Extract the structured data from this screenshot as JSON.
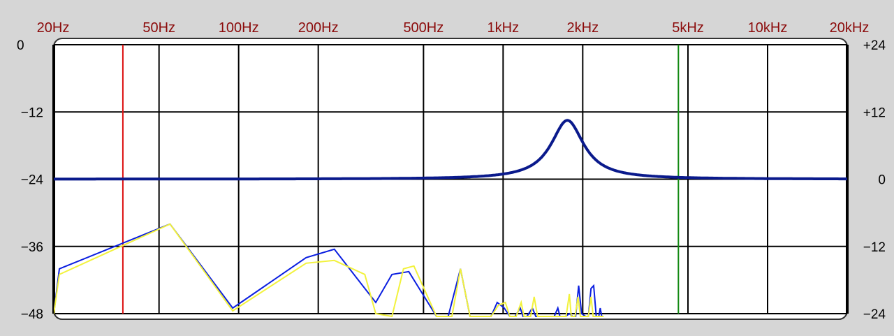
{
  "chart_data": {
    "type": "line",
    "title": "",
    "xlabel": "",
    "ylabel": "",
    "x_scale": "log",
    "xlim": [
      20,
      20000
    ],
    "grid": true,
    "x_ticks": [
      {
        "value": 20,
        "label": "20Hz"
      },
      {
        "value": 50,
        "label": "50Hz"
      },
      {
        "value": 100,
        "label": "100Hz"
      },
      {
        "value": 200,
        "label": "200Hz"
      },
      {
        "value": 500,
        "label": "500Hz"
      },
      {
        "value": 1000,
        "label": "1kHz"
      },
      {
        "value": 2000,
        "label": "2kHz"
      },
      {
        "value": 5000,
        "label": "5kHz"
      },
      {
        "value": 10000,
        "label": "10kHz"
      },
      {
        "value": 20000,
        "label": "20kHz"
      }
    ],
    "y_left": {
      "lim": [
        -48,
        0
      ],
      "ticks": [
        0,
        -12,
        -24,
        -36,
        -48
      ],
      "labels": [
        "0",
        "-12",
        "-24",
        "-36",
        "-48"
      ]
    },
    "y_right": {
      "lim": [
        -24,
        24
      ],
      "ticks": [
        24,
        12,
        0,
        -12,
        -24
      ],
      "labels": [
        "+24",
        "+12",
        "0",
        "-12",
        "-24"
      ]
    },
    "markers": [
      {
        "freq": 36.5,
        "color": "#dd1111"
      },
      {
        "freq": 4600,
        "color": "#118811"
      }
    ],
    "eq_curve": {
      "axis": "right",
      "color": "#0a1a8c",
      "center_freq": 1750,
      "peak_gain": 10.5,
      "q": 4,
      "baseline": 0
    },
    "series": [
      {
        "color": "#0a1ee0",
        "axis": "left",
        "points": [
          [
            20,
            -48
          ],
          [
            21,
            -40
          ],
          [
            55,
            -32
          ],
          [
            95,
            -47
          ],
          [
            180,
            -38
          ],
          [
            230,
            -36.5
          ],
          [
            330,
            -46
          ],
          [
            380,
            -41
          ],
          [
            440,
            -40.5
          ],
          [
            560,
            -48.5
          ],
          [
            620,
            -48.5
          ],
          [
            690,
            -40
          ],
          [
            750,
            -48.5
          ],
          [
            810,
            -48.5
          ],
          [
            900,
            -48.5
          ],
          [
            950,
            -46
          ],
          [
            1010,
            -47
          ],
          [
            1060,
            -48.5
          ],
          [
            1110,
            -48.5
          ],
          [
            1160,
            -47
          ],
          [
            1190,
            -48.5
          ],
          [
            1230,
            -48.5
          ],
          [
            1290,
            -47
          ],
          [
            1330,
            -48.5
          ],
          [
            1380,
            -48.5
          ],
          [
            1560,
            -48.5
          ],
          [
            1610,
            -47
          ],
          [
            1640,
            -48.5
          ],
          [
            1670,
            -48.5
          ],
          [
            1720,
            -48.5
          ],
          [
            1780,
            -48
          ],
          [
            1830,
            -48.5
          ],
          [
            1880,
            -48.5
          ],
          [
            1930,
            -43
          ],
          [
            1980,
            -48
          ],
          [
            2050,
            -48.5
          ],
          [
            2100,
            -48.5
          ],
          [
            2150,
            -43.5
          ],
          [
            2200,
            -43
          ],
          [
            2250,
            -48.5
          ],
          [
            2300,
            -48.5
          ],
          [
            2330,
            -47
          ],
          [
            2360,
            -48.5
          ]
        ]
      },
      {
        "color": "#f2f23c",
        "axis": "left",
        "points": [
          [
            20,
            -48
          ],
          [
            21,
            -41
          ],
          [
            55,
            -32
          ],
          [
            95,
            -47.5
          ],
          [
            180,
            -39
          ],
          [
            230,
            -38.5
          ],
          [
            300,
            -41
          ],
          [
            330,
            -48
          ],
          [
            380,
            -48.5
          ],
          [
            420,
            -40
          ],
          [
            460,
            -39.5
          ],
          [
            560,
            -48.5
          ],
          [
            640,
            -48.5
          ],
          [
            690,
            -40
          ],
          [
            750,
            -48.5
          ],
          [
            900,
            -48.5
          ],
          [
            960,
            -46.5
          ],
          [
            1020,
            -46
          ],
          [
            1060,
            -48.5
          ],
          [
            1120,
            -48.5
          ],
          [
            1170,
            -46
          ],
          [
            1200,
            -48.5
          ],
          [
            1270,
            -48.5
          ],
          [
            1310,
            -45
          ],
          [
            1350,
            -48.5
          ],
          [
            1730,
            -48.5
          ],
          [
            1780,
            -44.5
          ],
          [
            1810,
            -48.5
          ],
          [
            1870,
            -48.5
          ],
          [
            1920,
            -45
          ],
          [
            1960,
            -48.5
          ],
          [
            2100,
            -48.5
          ],
          [
            2150,
            -45
          ],
          [
            2190,
            -48.5
          ],
          [
            2400,
            -48.5
          ]
        ]
      }
    ]
  }
}
